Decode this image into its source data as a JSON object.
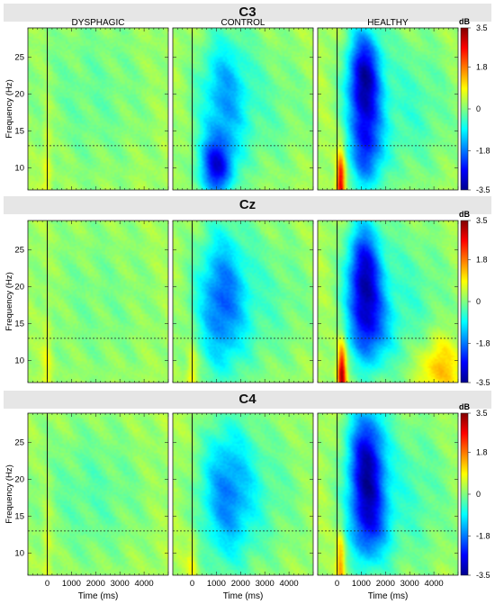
{
  "chart_data": {
    "type": "heatmap",
    "column_titles": [
      "DYSPHAGIC",
      "CONTROL",
      "HEALTHY"
    ],
    "xlabel": "Time (ms)",
    "ylabel": "Frequency (Hz)",
    "xlim": [
      -800,
      5000
    ],
    "ylim": [
      7,
      29
    ],
    "xticks": [
      1000,
      2000,
      3000,
      4000
    ],
    "zero_tick": "0",
    "yticks": [
      10,
      15,
      20,
      25
    ],
    "event_time_ms": 0,
    "reference_frequency_hz": 13,
    "colorbar": {
      "label": "dB",
      "range": [
        -3.5,
        3.5
      ],
      "ticks": [
        3.5,
        1.8,
        0,
        -1.8,
        -3.5
      ],
      "tick_labels": [
        "3.5",
        "1.8",
        "0",
        "-1.8",
        "-3.5"
      ],
      "colormap": "jet"
    },
    "panels": [
      {
        "channel": "C3",
        "maps": [
          {
            "group": "DYSPHAGIC",
            "value_summary": "weak changes near 0 dB, slight positive ridge at onset",
            "blobs": [
              {
                "t": 0,
                "f": 10,
                "sigt": 150,
                "sigf": 6,
                "a": 0.6
              },
              {
                "t": 1800,
                "f": 20,
                "sigt": 2000,
                "sigf": 10,
                "a": -0.5
              }
            ]
          },
          {
            "group": "CONTROL",
            "value_summary": "desynchronization strongest 8-14 Hz at 500-1500 ms",
            "blobs": [
              {
                "t": 1000,
                "f": 10,
                "sigt": 500,
                "sigf": 3,
                "a": -2.6
              },
              {
                "t": 1300,
                "f": 20,
                "sigt": 700,
                "sigf": 6,
                "a": -1.4
              },
              {
                "t": 2500,
                "f": 18,
                "sigt": 1800,
                "sigf": 8,
                "a": -0.6
              }
            ]
          },
          {
            "group": "HEALTHY",
            "value_summary": "strong desynchronization 15-28 Hz at 500-1800 ms, positive burst at onset below 12 Hz",
            "blobs": [
              {
                "t": 1100,
                "f": 22,
                "sigt": 500,
                "sigf": 5,
                "a": -3.2
              },
              {
                "t": 1200,
                "f": 12,
                "sigt": 500,
                "sigf": 4,
                "a": -2.0
              },
              {
                "t": 150,
                "f": 8,
                "sigt": 120,
                "sigf": 3,
                "a": 2.6
              },
              {
                "t": 2800,
                "f": 18,
                "sigt": 1500,
                "sigf": 8,
                "a": -0.8
              }
            ]
          }
        ]
      },
      {
        "channel": "Cz",
        "maps": [
          {
            "group": "DYSPHAGIC",
            "value_summary": "weak changes near 0 dB",
            "blobs": [
              {
                "t": 0,
                "f": 10,
                "sigt": 150,
                "sigf": 6,
                "a": 0.5
              },
              {
                "t": 2000,
                "f": 18,
                "sigt": 2000,
                "sigf": 10,
                "a": -0.4
              }
            ]
          },
          {
            "group": "CONTROL",
            "value_summary": "moderate desynchronization 10-22 Hz at 500-2000 ms",
            "blobs": [
              {
                "t": 1200,
                "f": 18,
                "sigt": 700,
                "sigf": 7,
                "a": -1.8
              },
              {
                "t": 2500,
                "f": 18,
                "sigt": 1800,
                "sigf": 8,
                "a": -0.7
              },
              {
                "t": 0,
                "f": 8,
                "sigt": 150,
                "sigf": 3,
                "a": 0.8
              }
            ]
          },
          {
            "group": "HEALTHY",
            "value_summary": "strong desynchronization 18-28 Hz, positive burst at onset below 12 Hz, late increase 8-11 Hz",
            "blobs": [
              {
                "t": 1100,
                "f": 22,
                "sigt": 500,
                "sigf": 5,
                "a": -2.8
              },
              {
                "t": 1300,
                "f": 14,
                "sigt": 600,
                "sigf": 4,
                "a": -1.8
              },
              {
                "t": 200,
                "f": 8,
                "sigt": 120,
                "sigf": 3,
                "a": 3.0
              },
              {
                "t": 4200,
                "f": 9,
                "sigt": 600,
                "sigf": 3,
                "a": 1.2
              },
              {
                "t": 2600,
                "f": 18,
                "sigt": 1500,
                "sigf": 8,
                "a": -0.8
              }
            ]
          }
        ]
      },
      {
        "channel": "C4",
        "maps": [
          {
            "group": "DYSPHAGIC",
            "value_summary": "weak changes near 0 dB",
            "blobs": [
              {
                "t": 0,
                "f": 10,
                "sigt": 150,
                "sigf": 6,
                "a": 0.5
              },
              {
                "t": 1800,
                "f": 18,
                "sigt": 1800,
                "sigf": 8,
                "a": -0.6
              }
            ]
          },
          {
            "group": "CONTROL",
            "value_summary": "moderate desynchronization 10-25 Hz at 500-2200 ms",
            "blobs": [
              {
                "t": 1400,
                "f": 18,
                "sigt": 800,
                "sigf": 7,
                "a": -1.7
              },
              {
                "t": 2800,
                "f": 18,
                "sigt": 1500,
                "sigf": 8,
                "a": -0.6
              },
              {
                "t": 0,
                "f": 9,
                "sigt": 150,
                "sigf": 3,
                "a": 0.6
              }
            ]
          },
          {
            "group": "HEALTHY",
            "value_summary": "strong desynchronization 15-28 Hz at 500-1800 ms",
            "blobs": [
              {
                "t": 1200,
                "f": 22,
                "sigt": 550,
                "sigf": 6,
                "a": -3.0
              },
              {
                "t": 1300,
                "f": 13,
                "sigt": 600,
                "sigf": 4,
                "a": -1.5
              },
              {
                "t": 150,
                "f": 9,
                "sigt": 120,
                "sigf": 3,
                "a": 1.4
              },
              {
                "t": 2700,
                "f": 18,
                "sigt": 1500,
                "sigf": 8,
                "a": -0.8
              }
            ]
          }
        ]
      }
    ]
  }
}
